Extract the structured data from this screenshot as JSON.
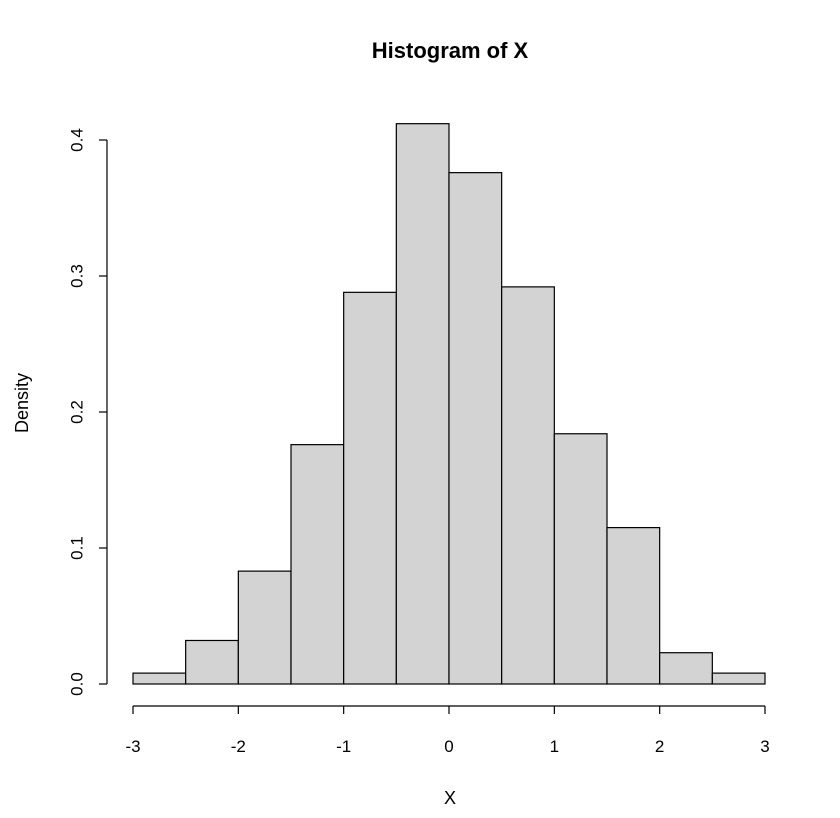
{
  "chart_data": {
    "type": "bar",
    "title": "Histogram of X",
    "xlabel": "X",
    "ylabel": "Density",
    "bin_edges": [
      -3,
      -2.5,
      -2,
      -1.5,
      -1,
      -0.5,
      0,
      0.5,
      1,
      1.5,
      2,
      2.5,
      3
    ],
    "values": [
      0.008,
      0.032,
      0.083,
      0.176,
      0.288,
      0.412,
      0.376,
      0.292,
      0.184,
      0.115,
      0.023,
      0.008
    ],
    "xlim": [
      -3,
      3
    ],
    "ylim": [
      0,
      0.41
    ],
    "x_ticks": [
      -3,
      -2,
      -1,
      0,
      1,
      2,
      3
    ],
    "x_tick_labels": [
      "-3",
      "-2",
      "-1",
      "0",
      "1",
      "2",
      "3"
    ],
    "y_ticks": [
      0,
      0.1,
      0.2,
      0.3,
      0.4
    ],
    "y_tick_labels": [
      "0.0",
      "0.1",
      "0.2",
      "0.3",
      "0.4"
    ],
    "grid": false,
    "legend": "none"
  },
  "colors": {
    "bar_fill": "#d3d3d3",
    "bar_stroke": "#000000"
  }
}
